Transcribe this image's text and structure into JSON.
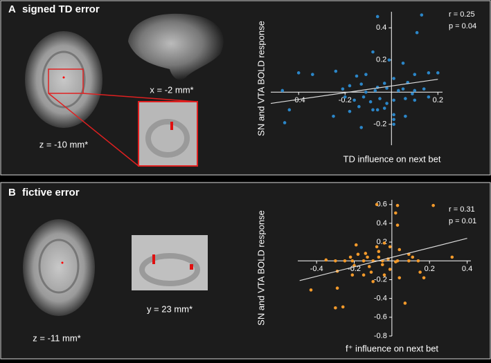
{
  "chart_data": [
    {
      "type": "scatter",
      "panel_label": "A",
      "title": "signed TD error",
      "x_label": "TD influence on next bet",
      "y_label": "SN and VTA BOLD response",
      "annotations": [
        "r = 0.25",
        "p = 0.04"
      ],
      "color": "#2b86c8",
      "xlim": [
        -0.52,
        0.22
      ],
      "ylim": [
        -0.33,
        0.5
      ],
      "xticks": [
        -0.4,
        -0.2,
        0.2
      ],
      "yticks": [
        0.4,
        0.2,
        -0.2
      ],
      "trendline": {
        "x": [
          -0.52,
          0.2
        ],
        "y": [
          -0.07,
          0.08
        ]
      },
      "x": [
        -0.06,
        0.13,
        0.11,
        -0.08,
        -0.01,
        0.05,
        -0.4,
        -0.34,
        -0.24,
        -0.15,
        -0.11,
        0.16,
        0.1,
        0.2,
        0.01,
        0.07,
        -0.13,
        -0.18,
        -0.21,
        -0.06,
        -0.03,
        -0.02,
        0.03,
        0.05,
        0.1,
        0.14,
        -0.47,
        -0.2,
        -0.16,
        -0.12,
        -0.09,
        -0.05,
        -0.02,
        0.01,
        0.06,
        0.1,
        0.16,
        -0.14,
        -0.08,
        -0.03,
        0.01,
        0.01,
        0.01,
        0.06,
        -0.13,
        -0.44,
        -0.46,
        -0.25,
        -0.18,
        0.09,
        -0.07,
        -0.11,
        -0.06
      ],
      "y": [
        0.47,
        0.48,
        0.37,
        0.25,
        0.2,
        0.18,
        0.12,
        0.11,
        0.13,
        0.1,
        0.11,
        0.12,
        0.11,
        0.12,
        0.085,
        0.06,
        0.05,
        0.04,
        0.02,
        0.03,
        0.055,
        0.025,
        0.01,
        0.02,
        0.01,
        0.02,
        0.01,
        -0.03,
        -0.05,
        -0.03,
        -0.06,
        -0.04,
        -0.07,
        -0.05,
        -0.04,
        -0.05,
        -0.03,
        -0.09,
        -0.11,
        -0.1,
        -0.14,
        -0.17,
        -0.2,
        -0.15,
        -0.22,
        -0.11,
        -0.19,
        -0.15,
        -0.12,
        -0.01,
        0.01,
        0,
        -0.11
      ]
    },
    {
      "type": "scatter",
      "panel_label": "B",
      "title": "fictive error",
      "x_label": "f⁺ influence on next bet",
      "y_label": "SN and VTA BOLD response",
      "annotations": [
        "r = 0.31",
        "p = 0.01"
      ],
      "color": "#f39a2b",
      "xlim": [
        -0.5,
        0.42
      ],
      "ylim": [
        -0.8,
        0.65
      ],
      "xticks": [
        -0.4,
        -0.2,
        0.2,
        0.4
      ],
      "yticks": [
        0.6,
        0.4,
        0.2,
        -0.2,
        -0.4,
        -0.6,
        -0.8
      ],
      "trendline": {
        "x": [
          -0.49,
          0.4
        ],
        "y": [
          -0.21,
          0.24
        ]
      },
      "x": [
        -0.08,
        0.03,
        0.22,
        0.02,
        0.03,
        -0.04,
        -0.08,
        -0.01,
        -0.19,
        -0.18,
        -0.14,
        -0.07,
        0.04,
        0.09,
        0.11,
        0.32,
        -0.35,
        -0.3,
        -0.25,
        -0.21,
        -0.15,
        -0.1,
        -0.05,
        -0.02,
        0.03,
        0.09,
        0.14,
        -0.2,
        -0.12,
        -0.05,
        -0.01,
        -0.11,
        -0.29,
        -0.21,
        -0.15,
        -0.04,
        0.04,
        0.15,
        0.17,
        -0.43,
        -0.29,
        -0.1,
        -0.3,
        -0.26,
        0.07,
        0.02,
        -0.07,
        -0.13,
        -0.22
      ],
      "y": [
        0.6,
        0.59,
        0.59,
        0.51,
        0.38,
        0.19,
        0.15,
        0.15,
        0.17,
        0.07,
        0.08,
        0.1,
        0.12,
        0.07,
        0.04,
        0.04,
        0.01,
        0,
        0,
        0,
        0,
        0,
        0,
        0.02,
        0,
        0,
        0,
        -0.05,
        -0.06,
        -0.04,
        -0.09,
        -0.12,
        -0.11,
        -0.15,
        -0.15,
        -0.15,
        -0.18,
        -0.12,
        -0.18,
        -0.31,
        -0.29,
        -0.22,
        -0.5,
        -0.49,
        -0.45,
        -0.01,
        0.04,
        0.04,
        0.04
      ]
    }
  ],
  "figure_captions": [
    [
      "z = -10 mm*",
      "x = -2 mm*"
    ],
    [
      "z = -11 mm*",
      "y = 23 mm*"
    ]
  ]
}
